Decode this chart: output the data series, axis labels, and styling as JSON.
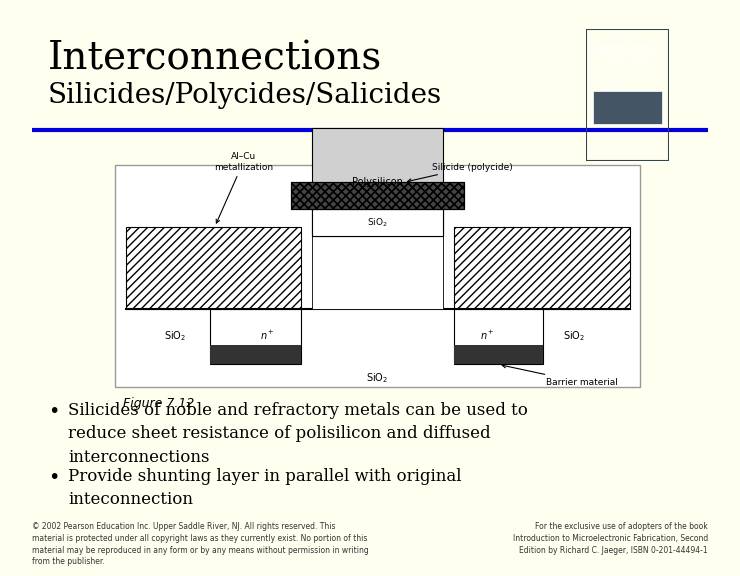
{
  "bg_color": "#fffff0",
  "title": "Interconnections",
  "subtitle": "Silicides/Polycides/Salicides",
  "title_fontsize": 28,
  "subtitle_fontsize": 20,
  "title_color": "#000000",
  "subtitle_color": "#000000",
  "separator_color": "#0000dd",
  "bullet_points": [
    "Silicides of noble and refractory metals can be used to\nreduce sheet resistance of polisilicon and diffused\ninterconnections",
    "Provide shunting layer in parallel with original\ninteconnection"
  ],
  "bullet_fontsize": 12,
  "figure_caption": "Figure 7.12",
  "figure_caption_fontsize": 9,
  "footer_left": "© 2002 Pearson Education Inc. Upper Saddle River, NJ. All rights reserved. This\nmaterial is protected under all copyright laws as they currently exist. No portion of this\nmaterial may be reproduced in any form or by any means without permission in writing\nfrom the publisher.",
  "footer_right": "For the exclusive use of adopters of the book\nIntroduction to Microelectronic Fabrication, Second\nEdition by Richard C. Jaeger, ISBN 0-201-44494-1",
  "footer_fontsize": 5.5,
  "diagram_box_color": "#ffffff",
  "diagram_box_edge": "#aaaaaa",
  "cover_color": "#7a9ab5"
}
